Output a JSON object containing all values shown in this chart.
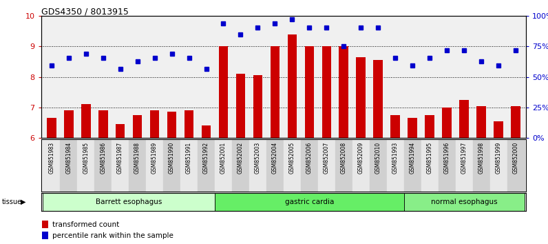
{
  "title": "GDS4350 / 8013915",
  "samples": [
    "GSM851983",
    "GSM851984",
    "GSM851985",
    "GSM851986",
    "GSM851987",
    "GSM851988",
    "GSM851989",
    "GSM851990",
    "GSM851991",
    "GSM851992",
    "GSM852001",
    "GSM852002",
    "GSM852003",
    "GSM852004",
    "GSM852005",
    "GSM852006",
    "GSM852007",
    "GSM852008",
    "GSM852009",
    "GSM852010",
    "GSM851993",
    "GSM851994",
    "GSM851995",
    "GSM851996",
    "GSM851997",
    "GSM851998",
    "GSM851999",
    "GSM852000"
  ],
  "bar_values": [
    6.65,
    6.9,
    7.1,
    6.9,
    6.45,
    6.75,
    6.9,
    6.85,
    6.9,
    6.4,
    9.0,
    8.1,
    8.05,
    9.0,
    9.38,
    9.0,
    9.0,
    9.0,
    8.65,
    8.55,
    6.75,
    6.65,
    6.75,
    7.0,
    7.25,
    7.05,
    6.55,
    7.05
  ],
  "dot_values": [
    8.38,
    8.62,
    8.75,
    8.62,
    8.25,
    8.5,
    8.62,
    8.75,
    8.62,
    8.25,
    9.75,
    9.38,
    9.62,
    9.75,
    9.88,
    9.62,
    9.62,
    9.0,
    9.62,
    9.62,
    8.62,
    8.38,
    8.62,
    8.88,
    8.88,
    8.5,
    8.38,
    8.88
  ],
  "groups": [
    {
      "label": "Barrett esophagus",
      "start": 0,
      "end": 10,
      "color": "#ccffcc"
    },
    {
      "label": "gastric cardia",
      "start": 10,
      "end": 21,
      "color": "#66ee66"
    },
    {
      "label": "normal esophagus",
      "start": 21,
      "end": 28,
      "color": "#88ee88"
    }
  ],
  "ylim": [
    6,
    10
  ],
  "yticks_left": [
    6,
    7,
    8,
    9,
    10
  ],
  "yticks_right_labels": [
    "0%",
    "25%",
    "50%",
    "75%",
    "100%"
  ],
  "bar_color": "#cc0000",
  "dot_color": "#0000cc",
  "plot_bg": "#f0f0f0",
  "tick_bg_light": "#e8e8e8",
  "tick_bg_dark": "#d0d0d0",
  "legend_bar": "transformed count",
  "legend_dot": "percentile rank within the sample"
}
